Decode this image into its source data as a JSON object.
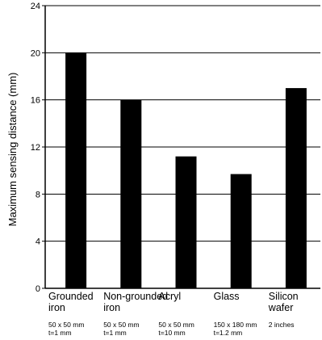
{
  "chart_data": {
    "type": "bar",
    "title": "",
    "xlabel": "",
    "ylabel": "Maximum sensing distance (mm)",
    "ylim": [
      0,
      24
    ],
    "yticks": [
      0,
      4,
      8,
      12,
      16,
      20,
      24
    ],
    "grid": true,
    "bar_color": "#000000",
    "categories": [
      {
        "lines": [
          "Grounded",
          "iron"
        ],
        "notes": [
          "50 x 50 mm",
          "t=1 mm"
        ]
      },
      {
        "lines": [
          "Non-grounded",
          "iron"
        ],
        "notes": [
          "50 x 50 mm",
          "t=1 mm"
        ]
      },
      {
        "lines": [
          "Acryl"
        ],
        "notes": [
          "50 x 50 mm",
          "t=10 mm"
        ]
      },
      {
        "lines": [
          "Glass"
        ],
        "notes": [
          "150 x 180 mm",
          "t=1.2 mm"
        ]
      },
      {
        "lines": [
          "Silicon",
          "wafer"
        ],
        "notes": [
          "2 inches"
        ]
      }
    ],
    "values": [
      20,
      16,
      11.2,
      9.7,
      17
    ]
  }
}
